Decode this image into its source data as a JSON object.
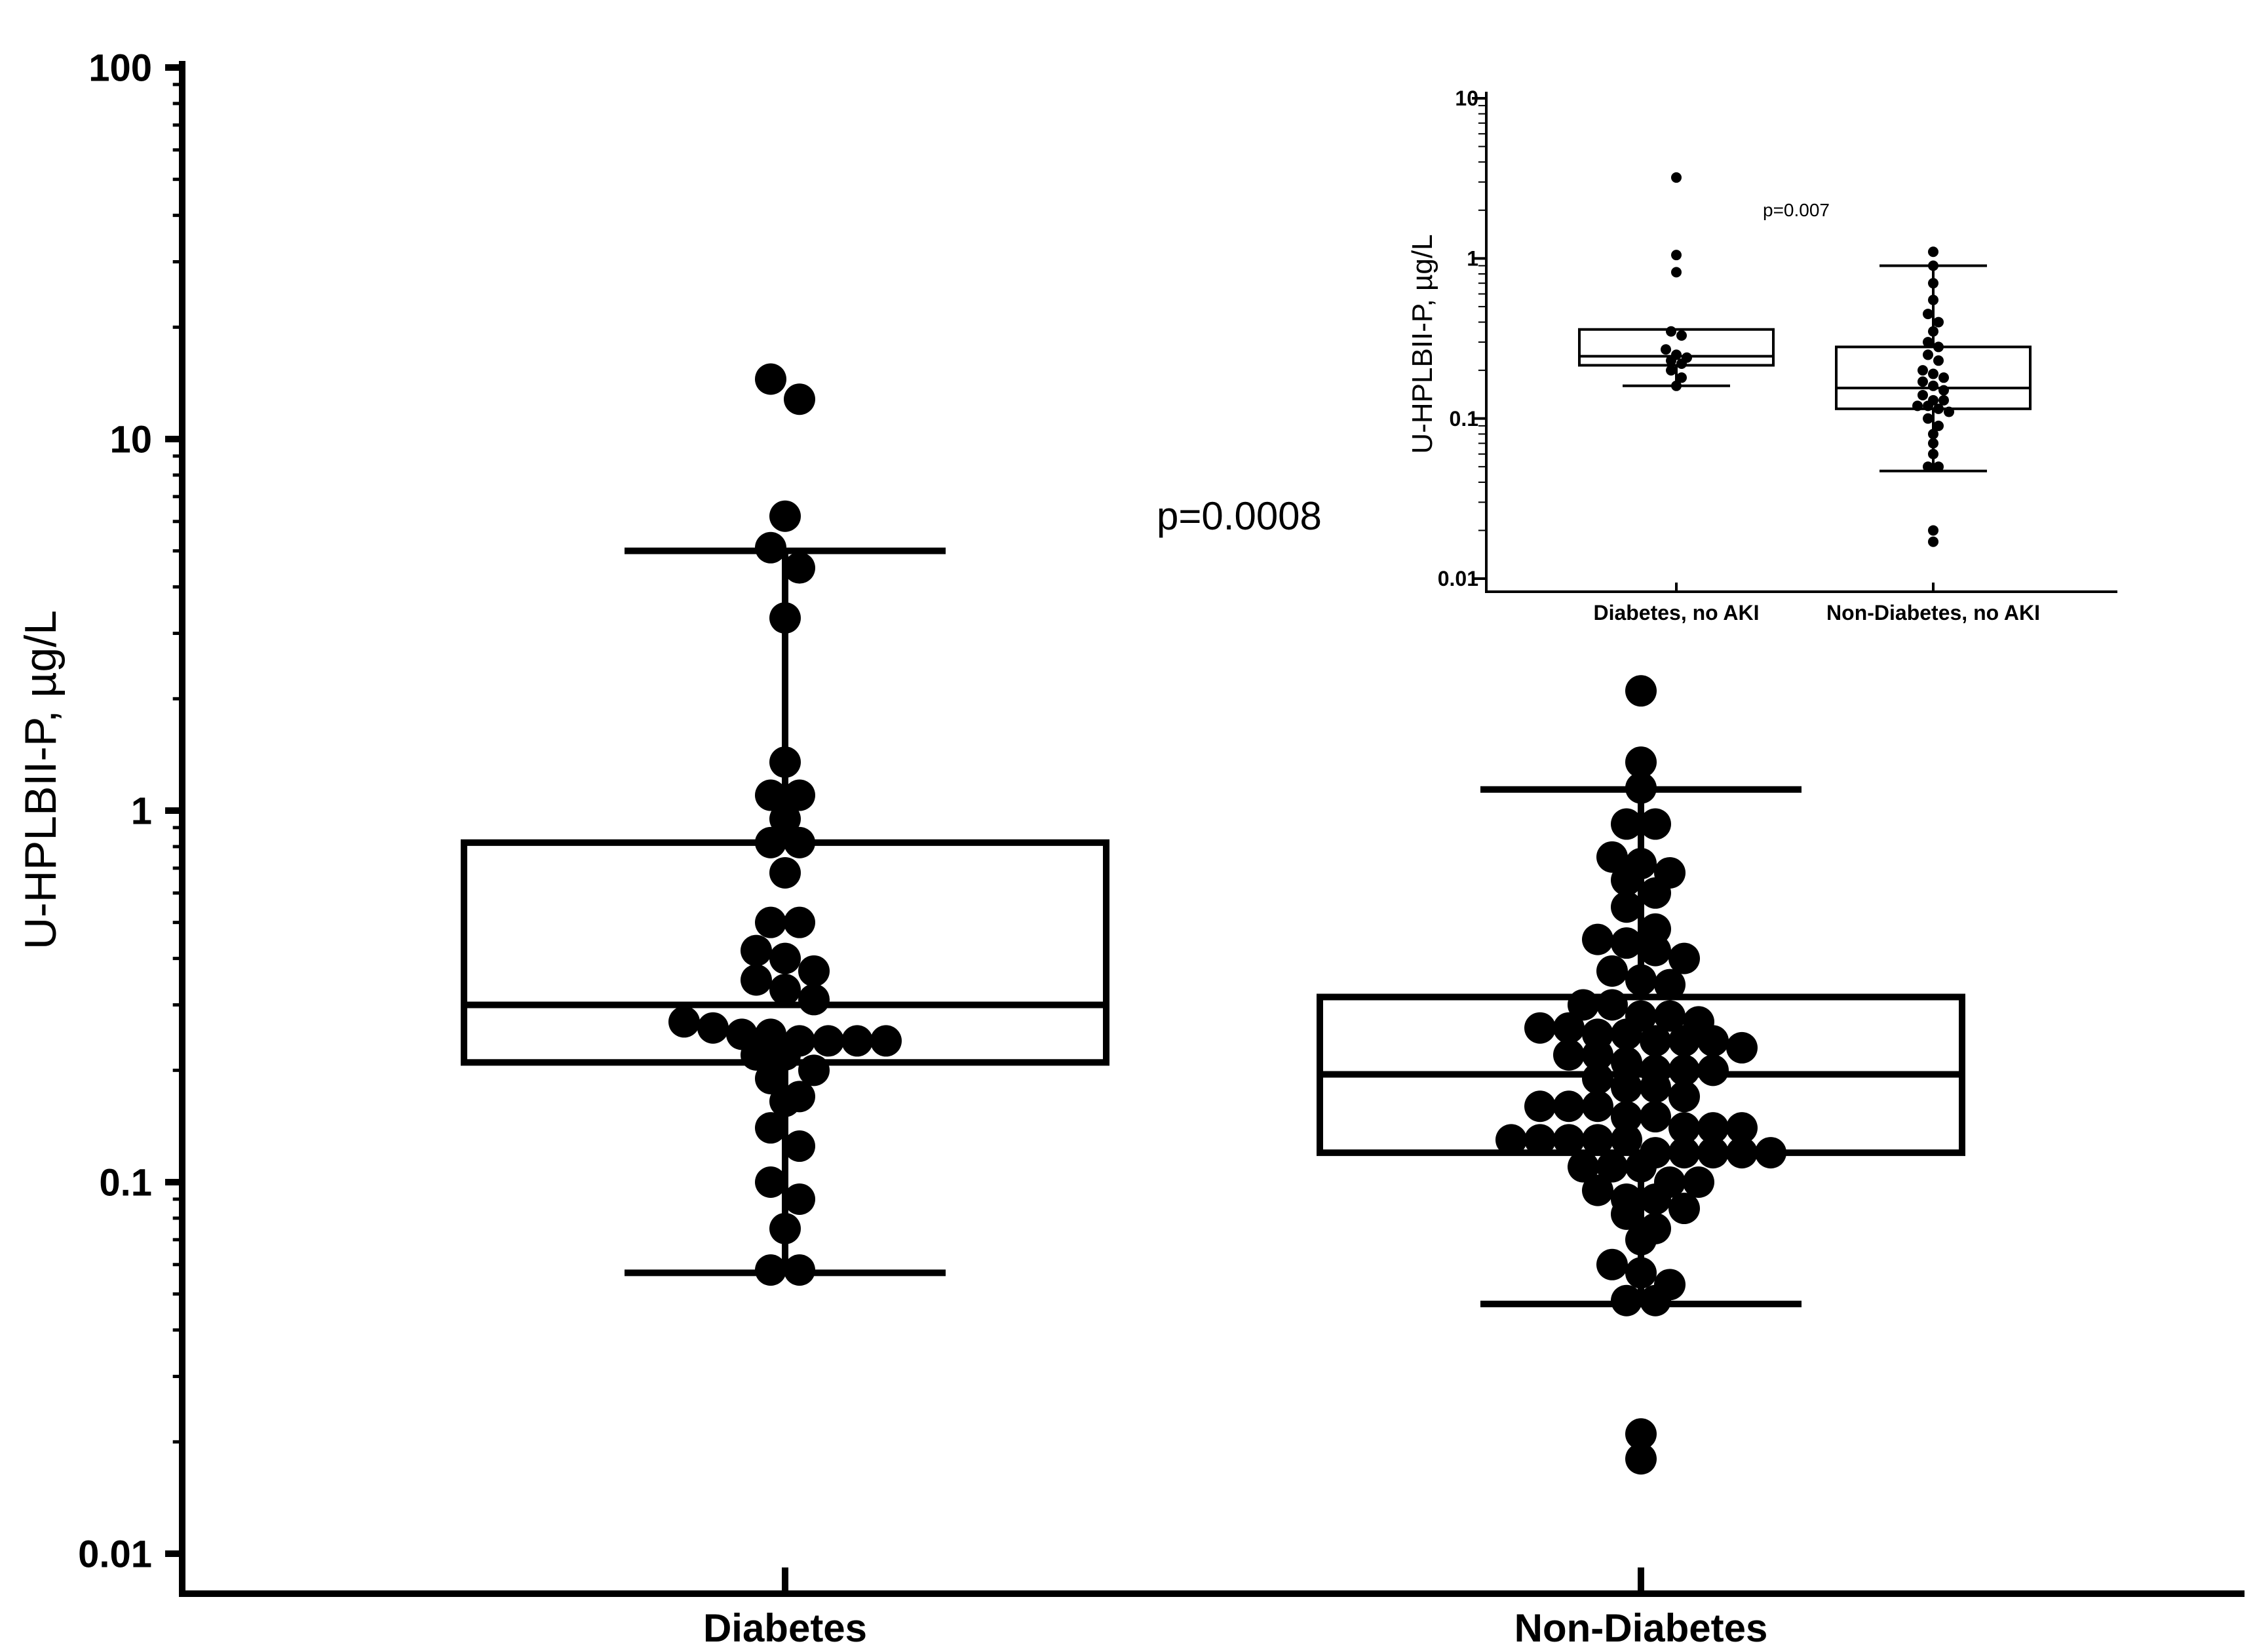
{
  "chart_data": [
    {
      "id": "main",
      "type": "box",
      "scale": "log",
      "ylabel": "U-HPLBII-P, µg/L",
      "xlabel": "",
      "ylim": [
        0.01,
        100
      ],
      "yticks": [
        {
          "value": 0.01,
          "label": "0.01"
        },
        {
          "value": 0.1,
          "label": "0.1"
        },
        {
          "value": 1,
          "label": "1"
        },
        {
          "value": 10,
          "label": "10"
        },
        {
          "value": 100,
          "label": "100"
        }
      ],
      "annotation": "p=0.0008",
      "categories": [
        "Diabetes",
        "Non-Diabetes"
      ],
      "boxes": [
        {
          "category": "Diabetes",
          "q1": 0.21,
          "median": 0.3,
          "q3": 0.82,
          "whisker_low": 0.057,
          "whisker_high": 5.0,
          "points": [
            14.5,
            12.8,
            6.2,
            5.1,
            4.5,
            3.3,
            1.35,
            1.1,
            1.1,
            0.95,
            0.82,
            0.82,
            0.68,
            0.5,
            0.5,
            0.42,
            0.4,
            0.37,
            0.35,
            0.33,
            0.31,
            0.27,
            0.26,
            0.25,
            0.25,
            0.24,
            0.24,
            0.24,
            0.24,
            0.22,
            0.22,
            0.2,
            0.19,
            0.17,
            0.165,
            0.14,
            0.125,
            0.1,
            0.09,
            0.075,
            0.058,
            0.058
          ]
        },
        {
          "category": "Non-Diabetes",
          "q1": 0.12,
          "median": 0.195,
          "q3": 0.315,
          "whisker_low": 0.047,
          "whisker_high": 1.14,
          "points": [
            2.1,
            1.35,
            1.15,
            0.92,
            0.92,
            0.75,
            0.72,
            0.68,
            0.65,
            0.6,
            0.55,
            0.48,
            0.45,
            0.44,
            0.42,
            0.4,
            0.37,
            0.35,
            0.34,
            0.3,
            0.3,
            0.28,
            0.28,
            0.27,
            0.26,
            0.26,
            0.25,
            0.25,
            0.24,
            0.24,
            0.24,
            0.23,
            0.22,
            0.22,
            0.21,
            0.2,
            0.2,
            0.2,
            0.19,
            0.18,
            0.18,
            0.17,
            0.16,
            0.16,
            0.16,
            0.15,
            0.15,
            0.14,
            0.14,
            0.14,
            0.13,
            0.13,
            0.13,
            0.13,
            0.13,
            0.12,
            0.12,
            0.12,
            0.12,
            0.12,
            0.11,
            0.11,
            0.11,
            0.1,
            0.1,
            0.095,
            0.09,
            0.09,
            0.085,
            0.082,
            0.075,
            0.07,
            0.06,
            0.057,
            0.053,
            0.048,
            0.048,
            0.021,
            0.018
          ]
        }
      ]
    },
    {
      "id": "inset",
      "type": "box",
      "scale": "log",
      "ylabel": "U-HPLBII-P, µg/L",
      "xlabel": "",
      "ylim": [
        0.01,
        10
      ],
      "yticks": [
        {
          "value": 0.01,
          "label": "0.01"
        },
        {
          "value": 0.1,
          "label": "0.1"
        },
        {
          "value": 1,
          "label": "1"
        },
        {
          "value": 10,
          "label": "10"
        }
      ],
      "annotation": "p=0.007",
      "categories": [
        "Diabetes, no AKI",
        "Non-Diabetes, no AKI"
      ],
      "boxes": [
        {
          "category": "Diabetes, no AKI",
          "q1": 0.215,
          "median": 0.245,
          "q3": 0.36,
          "whisker_low": 0.16,
          "whisker_high": null,
          "points": [
            3.2,
            1.05,
            0.82,
            0.35,
            0.33,
            0.27,
            0.25,
            0.24,
            0.23,
            0.22,
            0.2,
            0.18,
            0.16
          ]
        },
        {
          "category": "Non-Diabetes, no AKI",
          "q1": 0.115,
          "median": 0.155,
          "q3": 0.28,
          "whisker_low": 0.047,
          "whisker_high": 0.9,
          "points": [
            1.1,
            0.9,
            0.7,
            0.55,
            0.45,
            0.4,
            0.35,
            0.3,
            0.28,
            0.25,
            0.23,
            0.2,
            0.19,
            0.18,
            0.17,
            0.16,
            0.15,
            0.14,
            0.13,
            0.13,
            0.12,
            0.12,
            0.115,
            0.11,
            0.1,
            0.09,
            0.08,
            0.07,
            0.06,
            0.05,
            0.05,
            0.02,
            0.017
          ]
        }
      ]
    }
  ]
}
